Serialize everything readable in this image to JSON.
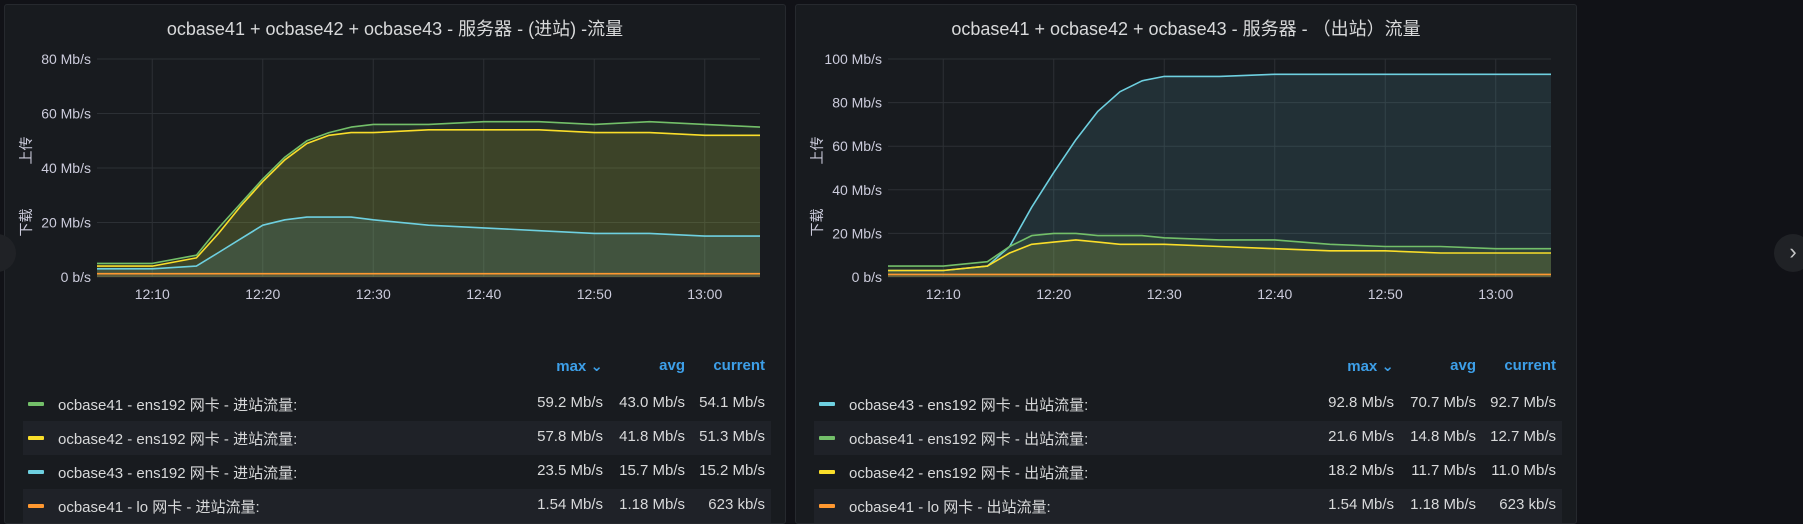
{
  "colors": {
    "green": "#73bf69",
    "yellow": "#fade2a",
    "cyan": "#8ab8ff",
    "blue": "#6ed0e0",
    "orange": "#ff9830",
    "grid": "#2c3035",
    "axis_text": "#ccccdc",
    "header": "#3d9fe8"
  },
  "left_arrow_icon": "‹",
  "right_arrow_icon": "›",
  "panels": [
    {
      "title": "ocbase41 + ocbase42 + ocbase43 - 服务器 - (进站) -流量",
      "y_label_top": "上传",
      "y_label_bottom": "下载",
      "legend_headers": {
        "max": "max ⌄",
        "avg": "avg",
        "current": "current"
      },
      "legend": [
        {
          "name": "ocbase41 - ens192 网卡 - 进站流量:",
          "color": "#73bf69",
          "max": "59.2 Mb/s",
          "avg": "43.0 Mb/s",
          "current": "54.1 Mb/s"
        },
        {
          "name": "ocbase42 - ens192 网卡 - 进站流量:",
          "color": "#fade2a",
          "max": "57.8 Mb/s",
          "avg": "41.8 Mb/s",
          "current": "51.3 Mb/s"
        },
        {
          "name": "ocbase43 - ens192 网卡 - 进站流量:",
          "color": "#6ed0e0",
          "max": "23.5 Mb/s",
          "avg": "15.7 Mb/s",
          "current": "15.2 Mb/s"
        },
        {
          "name": "ocbase41 - lo 网卡 - 进站流量:",
          "color": "#ff9830",
          "max": "1.54 Mb/s",
          "avg": "1.18 Mb/s",
          "current": "623 kb/s"
        }
      ]
    },
    {
      "title": "ocbase41 + ocbase42 + ocbase43 - 服务器 - （出站）流量",
      "y_label_top": "上传",
      "y_label_bottom": "下载",
      "legend_headers": {
        "max": "max ⌄",
        "avg": "avg",
        "current": "current"
      },
      "legend": [
        {
          "name": "ocbase43 - ens192 网卡 - 出站流量:",
          "color": "#6ed0e0",
          "max": "92.8 Mb/s",
          "avg": "70.7 Mb/s",
          "current": "92.7 Mb/s"
        },
        {
          "name": "ocbase41 - ens192 网卡 - 出站流量:",
          "color": "#73bf69",
          "max": "21.6 Mb/s",
          "avg": "14.8 Mb/s",
          "current": "12.7 Mb/s"
        },
        {
          "name": "ocbase42 - ens192 网卡 - 出站流量:",
          "color": "#fade2a",
          "max": "18.2 Mb/s",
          "avg": "11.7 Mb/s",
          "current": "11.0 Mb/s"
        },
        {
          "name": "ocbase41 - lo 网卡 - 出站流量:",
          "color": "#ff9830",
          "max": "1.54 Mb/s",
          "avg": "1.18 Mb/s",
          "current": "623 kb/s"
        }
      ]
    }
  ],
  "chart_data": [
    {
      "type": "area",
      "title": "ocbase41 + ocbase42 + ocbase43 - 服务器 - (进站) -流量",
      "x_ticks": [
        "12:10",
        "12:20",
        "12:30",
        "12:40",
        "12:50",
        "13:00"
      ],
      "y_ticks": [
        "0 b/s",
        "20 Mb/s",
        "40 Mb/s",
        "60 Mb/s",
        "80 Mb/s"
      ],
      "ylim": [
        0,
        80
      ],
      "x": [
        "12:05",
        "12:10",
        "12:14",
        "12:16",
        "12:18",
        "12:20",
        "12:22",
        "12:24",
        "12:26",
        "12:28",
        "12:30",
        "12:35",
        "12:40",
        "12:45",
        "12:50",
        "12:55",
        "13:00",
        "13:05"
      ],
      "series": [
        {
          "name": "ocbase41 - ens192 网卡 - 进站流量:",
          "color": "#73bf69",
          "values": [
            5,
            5,
            8,
            18,
            27,
            36,
            44,
            50,
            53,
            55,
            56,
            56,
            57,
            57,
            56,
            57,
            56,
            55
          ]
        },
        {
          "name": "ocbase42 - ens192 网卡 - 进站流量:",
          "color": "#fade2a",
          "values": [
            4,
            4,
            7,
            16,
            26,
            35,
            43,
            49,
            52,
            53,
            53,
            54,
            54,
            54,
            53,
            53,
            52,
            52
          ]
        },
        {
          "name": "ocbase43 - ens192 网卡 - 进站流量:",
          "color": "#6ed0e0",
          "values": [
            3,
            3,
            4,
            9,
            14,
            19,
            21,
            22,
            22,
            22,
            21,
            19,
            18,
            17,
            16,
            16,
            15,
            15
          ]
        },
        {
          "name": "ocbase41 - lo 网卡 - 进站流量:",
          "color": "#ff9830",
          "values": [
            1.2,
            1.2,
            1.2,
            1.2,
            1.2,
            1.2,
            1.2,
            1.2,
            1.2,
            1.2,
            1.2,
            1.2,
            1.2,
            1.2,
            1.2,
            1.2,
            1.2,
            1.2
          ]
        }
      ]
    },
    {
      "type": "area",
      "title": "ocbase41 + ocbase42 + ocbase43 - 服务器 - （出站）流量",
      "x_ticks": [
        "12:10",
        "12:20",
        "12:30",
        "12:40",
        "12:50",
        "13:00"
      ],
      "y_ticks": [
        "0 b/s",
        "20 Mb/s",
        "40 Mb/s",
        "60 Mb/s",
        "80 Mb/s",
        "100 Mb/s"
      ],
      "ylim": [
        0,
        100
      ],
      "x": [
        "12:05",
        "12:10",
        "12:14",
        "12:16",
        "12:18",
        "12:20",
        "12:22",
        "12:24",
        "12:26",
        "12:28",
        "12:30",
        "12:35",
        "12:40",
        "12:45",
        "12:50",
        "12:55",
        "13:00",
        "13:05"
      ],
      "series": [
        {
          "name": "ocbase43 - ens192 网卡 - 出站流量:",
          "color": "#6ed0e0",
          "values": [
            3,
            3,
            5,
            14,
            32,
            48,
            63,
            76,
            85,
            90,
            92,
            92,
            93,
            93,
            93,
            93,
            93,
            93
          ]
        },
        {
          "name": "ocbase41 - ens192 网卡 - 出站流量:",
          "color": "#73bf69",
          "values": [
            5,
            5,
            7,
            14,
            19,
            20,
            20,
            19,
            19,
            19,
            18,
            17,
            17,
            15,
            14,
            14,
            13,
            13
          ]
        },
        {
          "name": "ocbase42 - ens192 网卡 - 出站流量:",
          "color": "#fade2a",
          "values": [
            3,
            3,
            5,
            11,
            15,
            16,
            17,
            16,
            15,
            15,
            15,
            14,
            13,
            12,
            12,
            11,
            11,
            11
          ]
        },
        {
          "name": "ocbase41 - lo 网卡 - 出站流量:",
          "color": "#ff9830",
          "values": [
            1.2,
            1.2,
            1.2,
            1.2,
            1.2,
            1.2,
            1.2,
            1.2,
            1.2,
            1.2,
            1.2,
            1.2,
            1.2,
            1.2,
            1.2,
            1.2,
            1.2,
            1.2
          ]
        }
      ]
    }
  ]
}
